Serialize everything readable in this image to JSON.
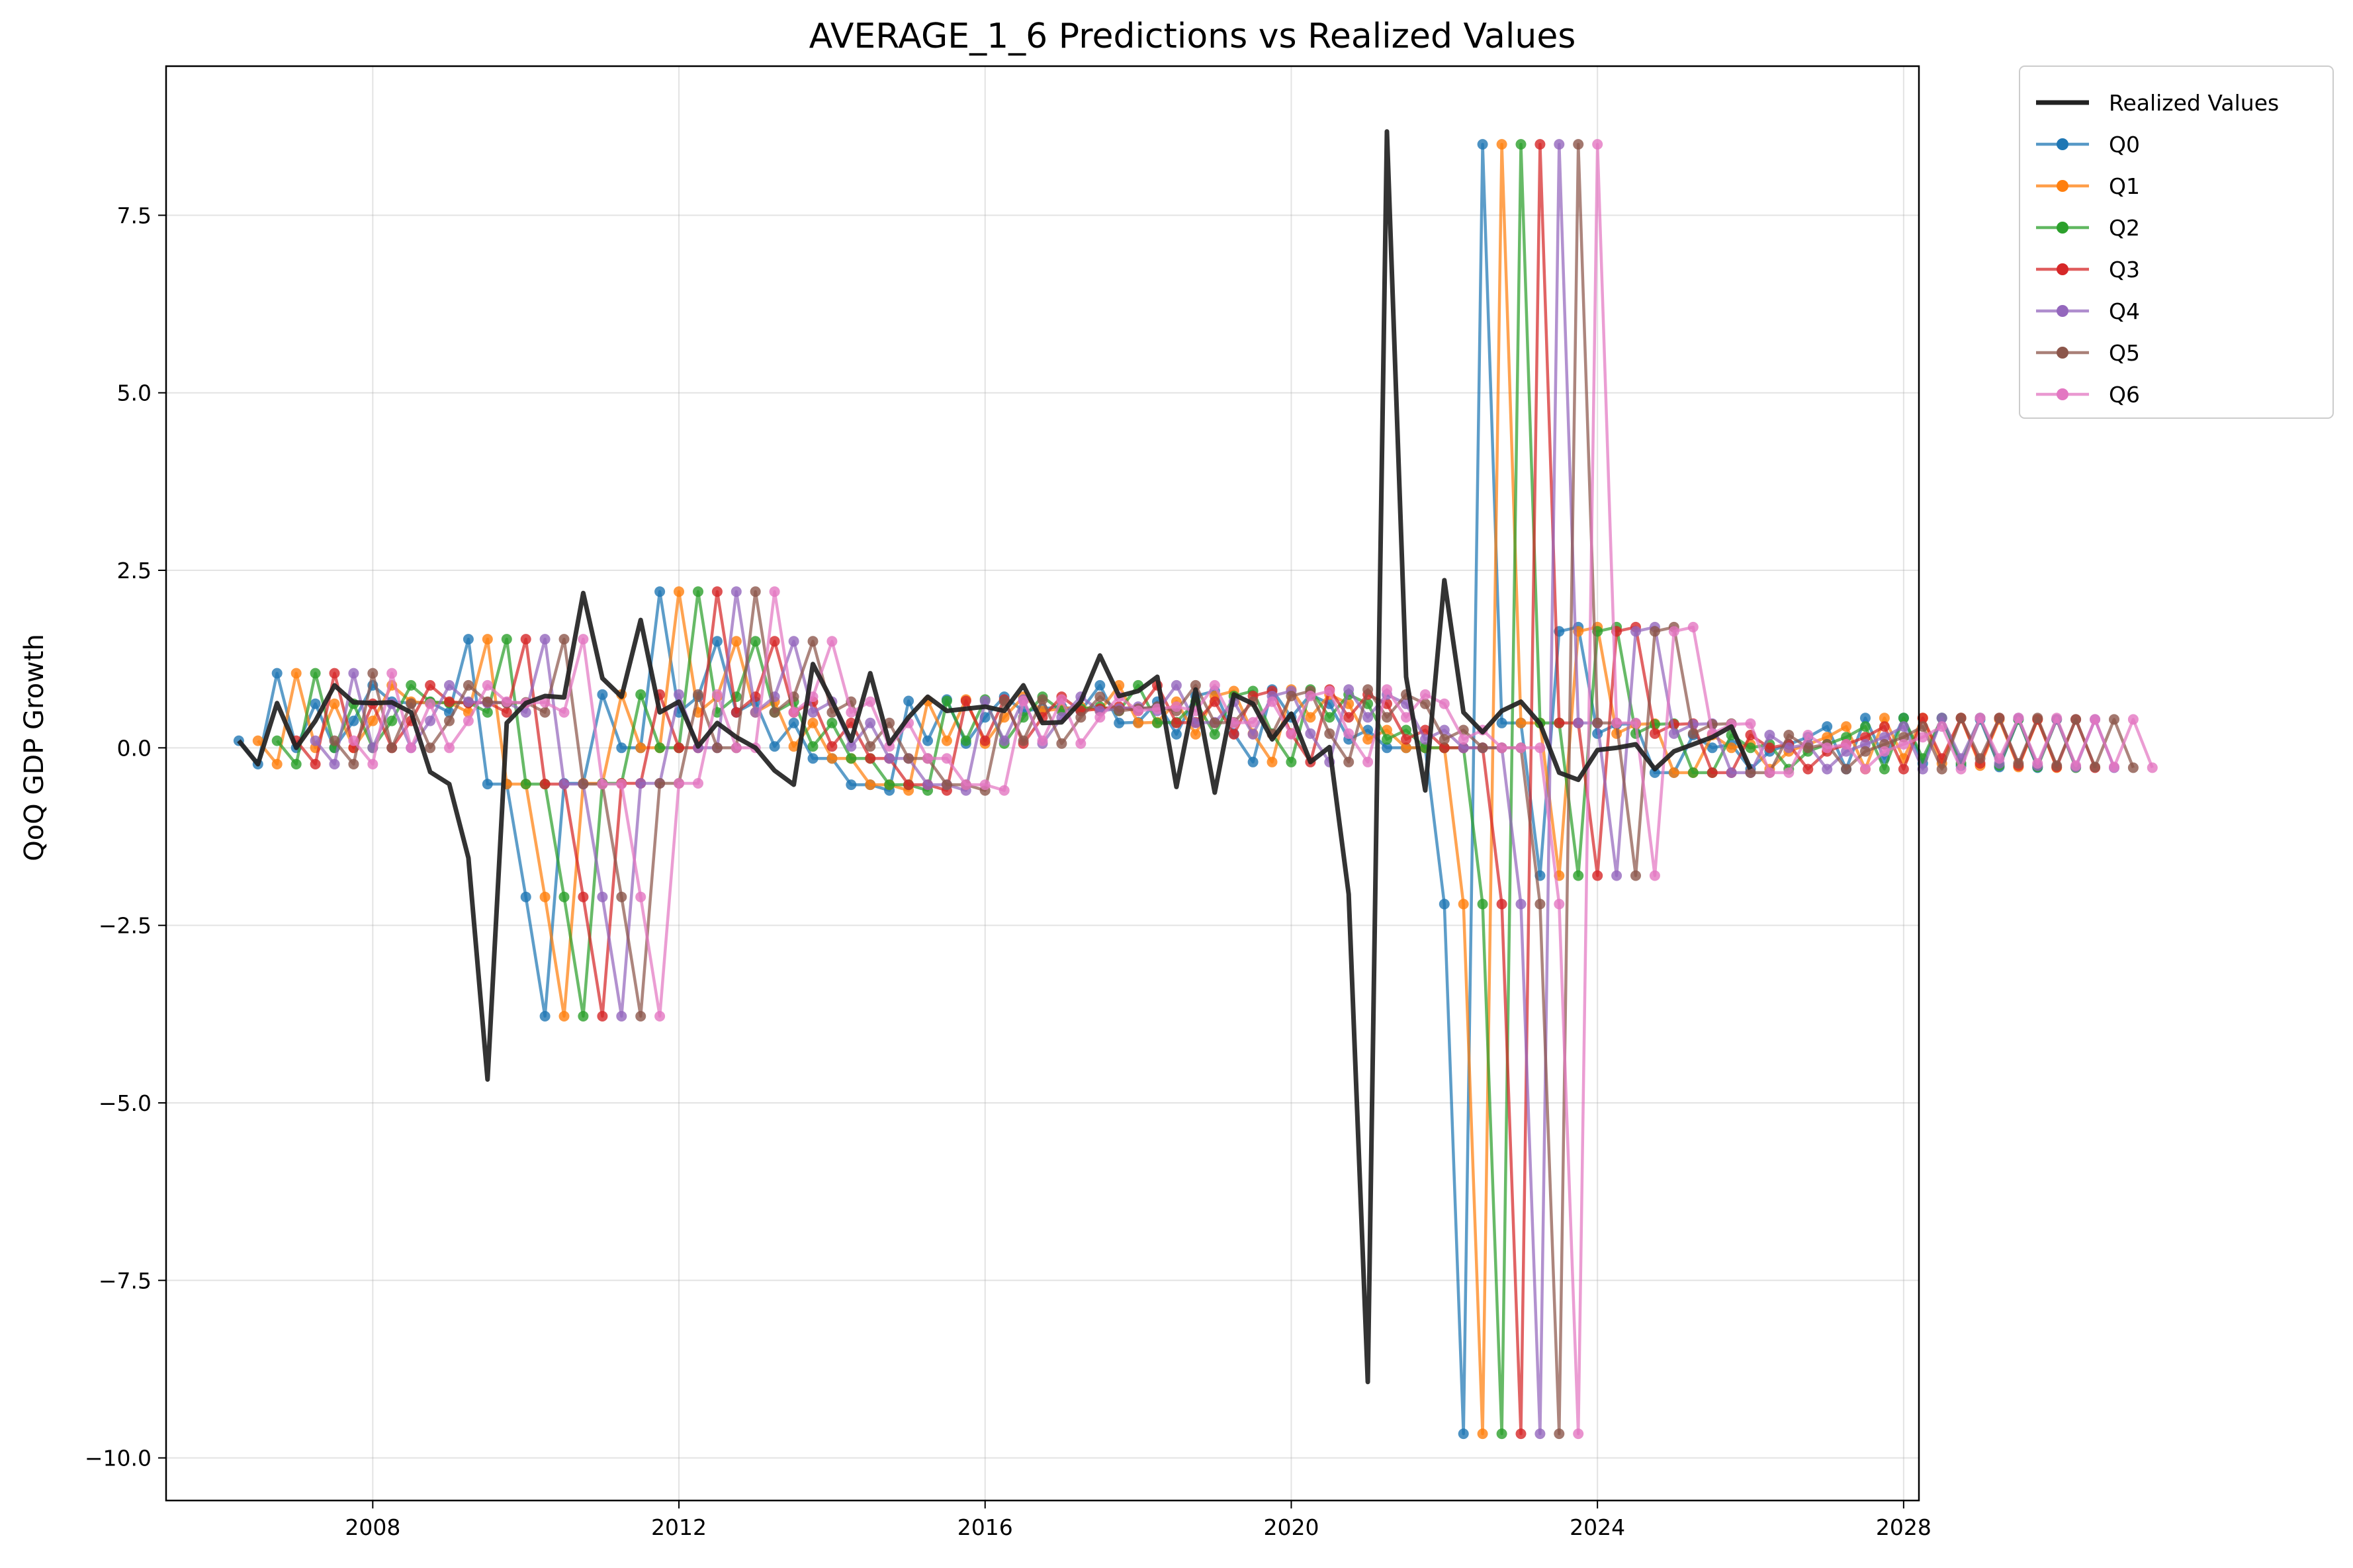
{
  "chart_data": {
    "type": "line",
    "title": "AVERAGE_1_6 Predictions vs Realized Values",
    "xlabel": "",
    "ylabel": "QoQ GDP Growth",
    "xlim": [
      2005.3,
      2028.2
    ],
    "ylim": [
      -10.6,
      9.6
    ],
    "x_ticks": [
      2008,
      2012,
      2016,
      2020,
      2024,
      2028
    ],
    "y_ticks": [
      -10.0,
      -7.5,
      -5.0,
      -2.5,
      0.0,
      2.5,
      5.0,
      7.5
    ],
    "y_tick_labels": [
      "−10.0",
      "−7.5",
      "−5.0",
      "−2.5",
      "0.0",
      "2.5",
      "5.0",
      "7.5"
    ],
    "grid": true,
    "legend_position": "outside-top-right",
    "realized": {
      "name": "Realized Values",
      "color": "#222222",
      "x_start": 2006.25,
      "values": [
        0.1,
        -0.23,
        0.63,
        0.0,
        0.38,
        0.88,
        0.64,
        0.63,
        0.64,
        0.5,
        -0.34,
        -0.51,
        -1.55,
        -4.67,
        0.35,
        0.63,
        0.73,
        0.71,
        2.18,
        0.98,
        0.72,
        1.8,
        0.5,
        0.65,
        0.02,
        0.35,
        0.15,
        0.0,
        -0.32,
        -0.52,
        1.18,
        0.66,
        0.1,
        1.05,
        0.06,
        0.43,
        0.72,
        0.52,
        0.55,
        0.58,
        0.52,
        0.88,
        0.35,
        0.36,
        0.65,
        1.3,
        0.73,
        0.8,
        1.0,
        -0.55,
        0.82,
        -0.63,
        0.75,
        0.62,
        0.12,
        0.48,
        -0.2,
        0.01,
        -2.06,
        -8.93,
        8.68,
        1.0,
        -0.6,
        2.36,
        0.5,
        0.22,
        0.52,
        0.65,
        0.34,
        -0.35,
        -0.45,
        -0.03,
        0.0,
        0.05,
        -0.3,
        -0.05,
        0.05,
        0.15,
        0.3,
        -0.3
      ]
    },
    "series": [
      {
        "name": "Q0",
        "color": "#1f77b4",
        "lead": 0
      },
      {
        "name": "Q1",
        "color": "#ff7f0e",
        "lead": 1
      },
      {
        "name": "Q2",
        "color": "#2ca02c",
        "lead": 2
      },
      {
        "name": "Q3",
        "color": "#d62728",
        "lead": 3
      },
      {
        "name": "Q4",
        "color": "#9467bd",
        "lead": 4
      },
      {
        "name": "Q5",
        "color": "#8c564b",
        "lead": 5
      },
      {
        "name": "Q6",
        "color": "#e377c2",
        "lead": 6
      }
    ],
    "prediction_pattern": {
      "x_start": 2006.25,
      "values": [
        0.1,
        -0.23,
        1.05,
        0.0,
        0.62,
        0.0,
        0.38,
        0.88,
        0.65,
        0.63,
        0.64,
        0.5,
        1.53,
        -0.51,
        -0.51,
        -2.1,
        -3.78,
        -0.5,
        -0.5,
        0.75,
        0.0,
        0.0,
        2.2,
        0.5,
        0.72,
        1.5,
        0.5,
        0.65,
        0.02,
        0.35,
        -0.15,
        -0.15,
        -0.52,
        -0.52,
        -0.6,
        0.66,
        0.1,
        0.68,
        0.06,
        0.43,
        0.72,
        0.52,
        0.55,
        0.58,
        0.52,
        0.88,
        0.35,
        0.36,
        0.65,
        0.19,
        0.73,
        0.8,
        0.2,
        -0.2,
        0.82,
        0.43,
        0.75,
        0.62,
        0.12,
        0.25,
        0.0,
        0.0,
        0.0,
        -2.2,
        -9.66,
        8.5,
        0.35,
        0.35,
        -1.8,
        1.64,
        1.7,
        0.2,
        0.33,
        0.34,
        -0.35,
        -0.35,
        0.18,
        0.0,
        0.05,
        -0.3,
        -0.05,
        0.05,
        0.15,
        0.3,
        -0.3,
        0.42,
        -0.15,
        0.42,
        -0.22,
        0.42,
        -0.25,
        0.4,
        -0.27,
        0.4,
        -0.28
      ]
    },
    "legend_entries": [
      "Realized Values",
      "Q0",
      "Q1",
      "Q2",
      "Q3",
      "Q4",
      "Q5",
      "Q6"
    ]
  }
}
